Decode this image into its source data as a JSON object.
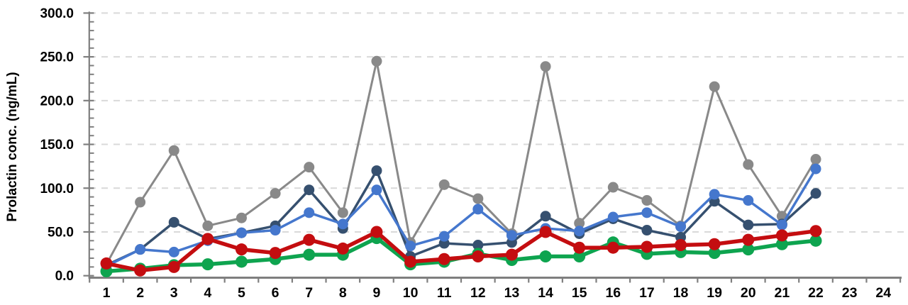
{
  "chart_data": {
    "type": "line",
    "title": "",
    "xlabel": "",
    "ylabel": "Prolactin conc. (ng/mL)",
    "categories": [
      "1",
      "2",
      "3",
      "4",
      "5",
      "6",
      "7",
      "8",
      "9",
      "10",
      "11",
      "12",
      "13",
      "14",
      "15",
      "16",
      "17",
      "18",
      "19",
      "20",
      "21",
      "22",
      "23",
      "24"
    ],
    "ylim": [
      0,
      300
    ],
    "ytick_interval": 50,
    "ytick_minor_interval": 10,
    "ytick_labels": [
      "0.0",
      "50.0",
      "100.0",
      "150.0",
      "200.0",
      "250.0",
      "300.0"
    ],
    "grid": {
      "horizontal_dashed": true,
      "color": "#d9d9d9"
    },
    "legend": "none",
    "axis_color": "#7f7f7f",
    "series": [
      {
        "name": "gray",
        "color": "#898989",
        "line_width": 3,
        "marker_radius": 7.5,
        "values": [
          13,
          84,
          143,
          57,
          66,
          94,
          124,
          72,
          245,
          38,
          104,
          88,
          48,
          239,
          60,
          101,
          86,
          57,
          216,
          127,
          68,
          133
        ]
      },
      {
        "name": "dark-blue",
        "color": "#36506f",
        "line_width": 3.5,
        "marker_radius": 7.5,
        "values": [
          12,
          30,
          61,
          42,
          49,
          57,
          98,
          54,
          120,
          22,
          37,
          35,
          38,
          68,
          48,
          65,
          52,
          44,
          85,
          58,
          59,
          94
        ]
      },
      {
        "name": "light-blue",
        "color": "#4577cd",
        "line_width": 3.5,
        "marker_radius": 7.5,
        "values": [
          11,
          30,
          27,
          40,
          49,
          52,
          72,
          59,
          98,
          34,
          45,
          76,
          46,
          54,
          51,
          67,
          72,
          56,
          93,
          86,
          58,
          122
        ]
      },
      {
        "name": "green",
        "color": "#0ea44f",
        "line_width": 5.5,
        "marker_radius": 8.5,
        "values": [
          5,
          8,
          12,
          13,
          16,
          19,
          24,
          24,
          43,
          13,
          16,
          25,
          18,
          22,
          22,
          38,
          25,
          27,
          26,
          30,
          36,
          40
        ]
      },
      {
        "name": "red",
        "color": "#c40d10",
        "line_width": 5.5,
        "marker_radius": 8.5,
        "values": [
          14,
          6,
          10,
          42,
          30,
          26,
          41,
          31,
          50,
          16,
          19,
          22,
          24,
          50,
          32,
          32,
          33,
          35,
          36,
          41,
          46,
          51
        ]
      }
    ]
  }
}
